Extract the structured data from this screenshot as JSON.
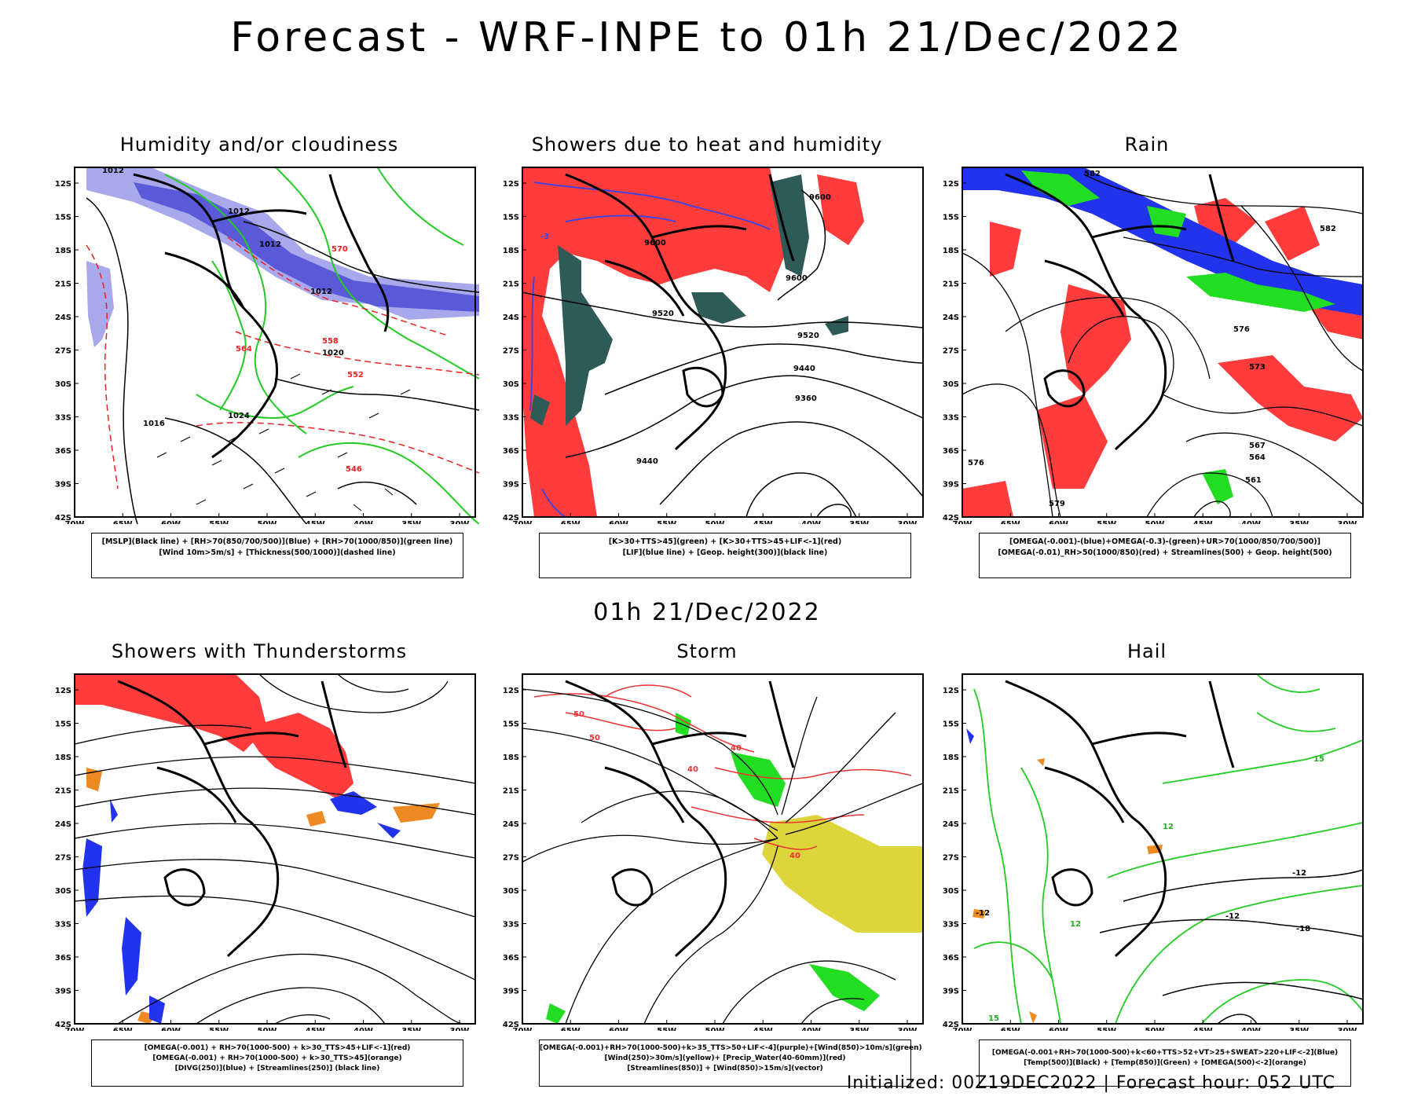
{
  "page": {
    "title": "Forecast - WRF-INPE to 01h 21/Dec/2022",
    "mid_label": "01h 21/Dec/2022",
    "footer": "Initialized: 00Z19DEC2022 | Forecast hour: 052 UTC"
  },
  "axes": {
    "lat_labels": [
      "12S",
      "15S",
      "18S",
      "21S",
      "24S",
      "27S",
      "30S",
      "33S",
      "36S",
      "39S",
      "42S"
    ],
    "lon_labels": [
      "70W",
      "65W",
      "60W",
      "55W",
      "50W",
      "45W",
      "40W",
      "35W",
      "30W"
    ]
  },
  "panels": [
    {
      "id": "humidity",
      "title": "Humidity and/or cloudiness",
      "legend": [
        "[MSLP](Black line) + [RH>70(850/700/500)](Blue) + [RH>70(1000/850)](green line)",
        "[Wind 10m>5m/s] + [Thickness(500/1000)](dashed line)"
      ],
      "contour_labels": [
        "1012",
        "1012",
        "1012",
        "1012",
        "1020",
        "1016",
        "1024",
        "570",
        "564",
        "558",
        "552",
        "546"
      ]
    },
    {
      "id": "showers",
      "title": "Showers due to heat and humidity",
      "legend": [
        "[K>30+TTS>45](green) + [K>30+TTS>45+LIF<-1](red)",
        "[LIF](blue line) + [Geop. height(300)](black line)"
      ],
      "contour_labels": [
        "9600",
        "9600",
        "9600",
        "9520",
        "9520",
        "9440",
        "9360",
        "9440",
        "-3"
      ]
    },
    {
      "id": "rain",
      "title": "Rain",
      "legend": [
        "[OMEGA(-0.001)-(blue)+OMEGA(-0.3)-(green)+UR>70(1000/850/700/500)]",
        "[OMEGA(-0.01)_RH>50(1000/850)(red) + Streamlines(500) + Geop. height(500)"
      ],
      "contour_labels": [
        "582",
        "582",
        "576",
        "573",
        "567",
        "564",
        "561",
        "579",
        "576"
      ]
    },
    {
      "id": "thunder",
      "title": "Showers with Thunderstorms",
      "legend": [
        "[OMEGA(-0.001) + RH>70(1000-500) + k>30_TTS>45+LIF<-1](red)",
        "[OMEGA(-0.001) + RH>70(1000-500) + k>30_TTS>45](orange)",
        "[DIVG(250)](blue) + [Streamlines(250)] (black line)"
      ],
      "contour_labels": []
    },
    {
      "id": "storm",
      "title": "Storm",
      "legend": [
        "[OMEGA(-0.001)+RH>70(1000-500)+k>35_TTS>50+LIF<-4](purple)+[Wind(850)>10m/s](green)",
        "[Wind(250)>30m/s](yellow)+ [Precip_Water(40-60mm)](red)",
        "[Streamlines(850)] + [Wind(850)>15m/s](vector)"
      ],
      "contour_labels": [
        "50",
        "50",
        "40",
        "40",
        "40"
      ]
    },
    {
      "id": "hail",
      "title": "Hail",
      "legend": [
        "[OMEGA(-0.001+RH>70(1000-500)+k<60+TTS>52+VT>25+SWEAT>220+LIF<-2](Blue)",
        "[Temp(500)](Black) + [Temp(850)](Green) + [OMEGA(500)<-2](orange)"
      ],
      "contour_labels": [
        "-12",
        "-12",
        "-12",
        "-18",
        "12",
        "15",
        "15",
        "12"
      ]
    }
  ],
  "colors": {
    "blue_fill": "#5a5ad8",
    "light_blue_fill": "#a8a8ec",
    "green_line": "#22cc22",
    "red": "#ff3c3c",
    "dark_teal": "#2e5a58",
    "yellow": "#dcd63c",
    "orange": "#ee8a22",
    "blue": "#2233ee",
    "bright_green": "#22dd22"
  }
}
